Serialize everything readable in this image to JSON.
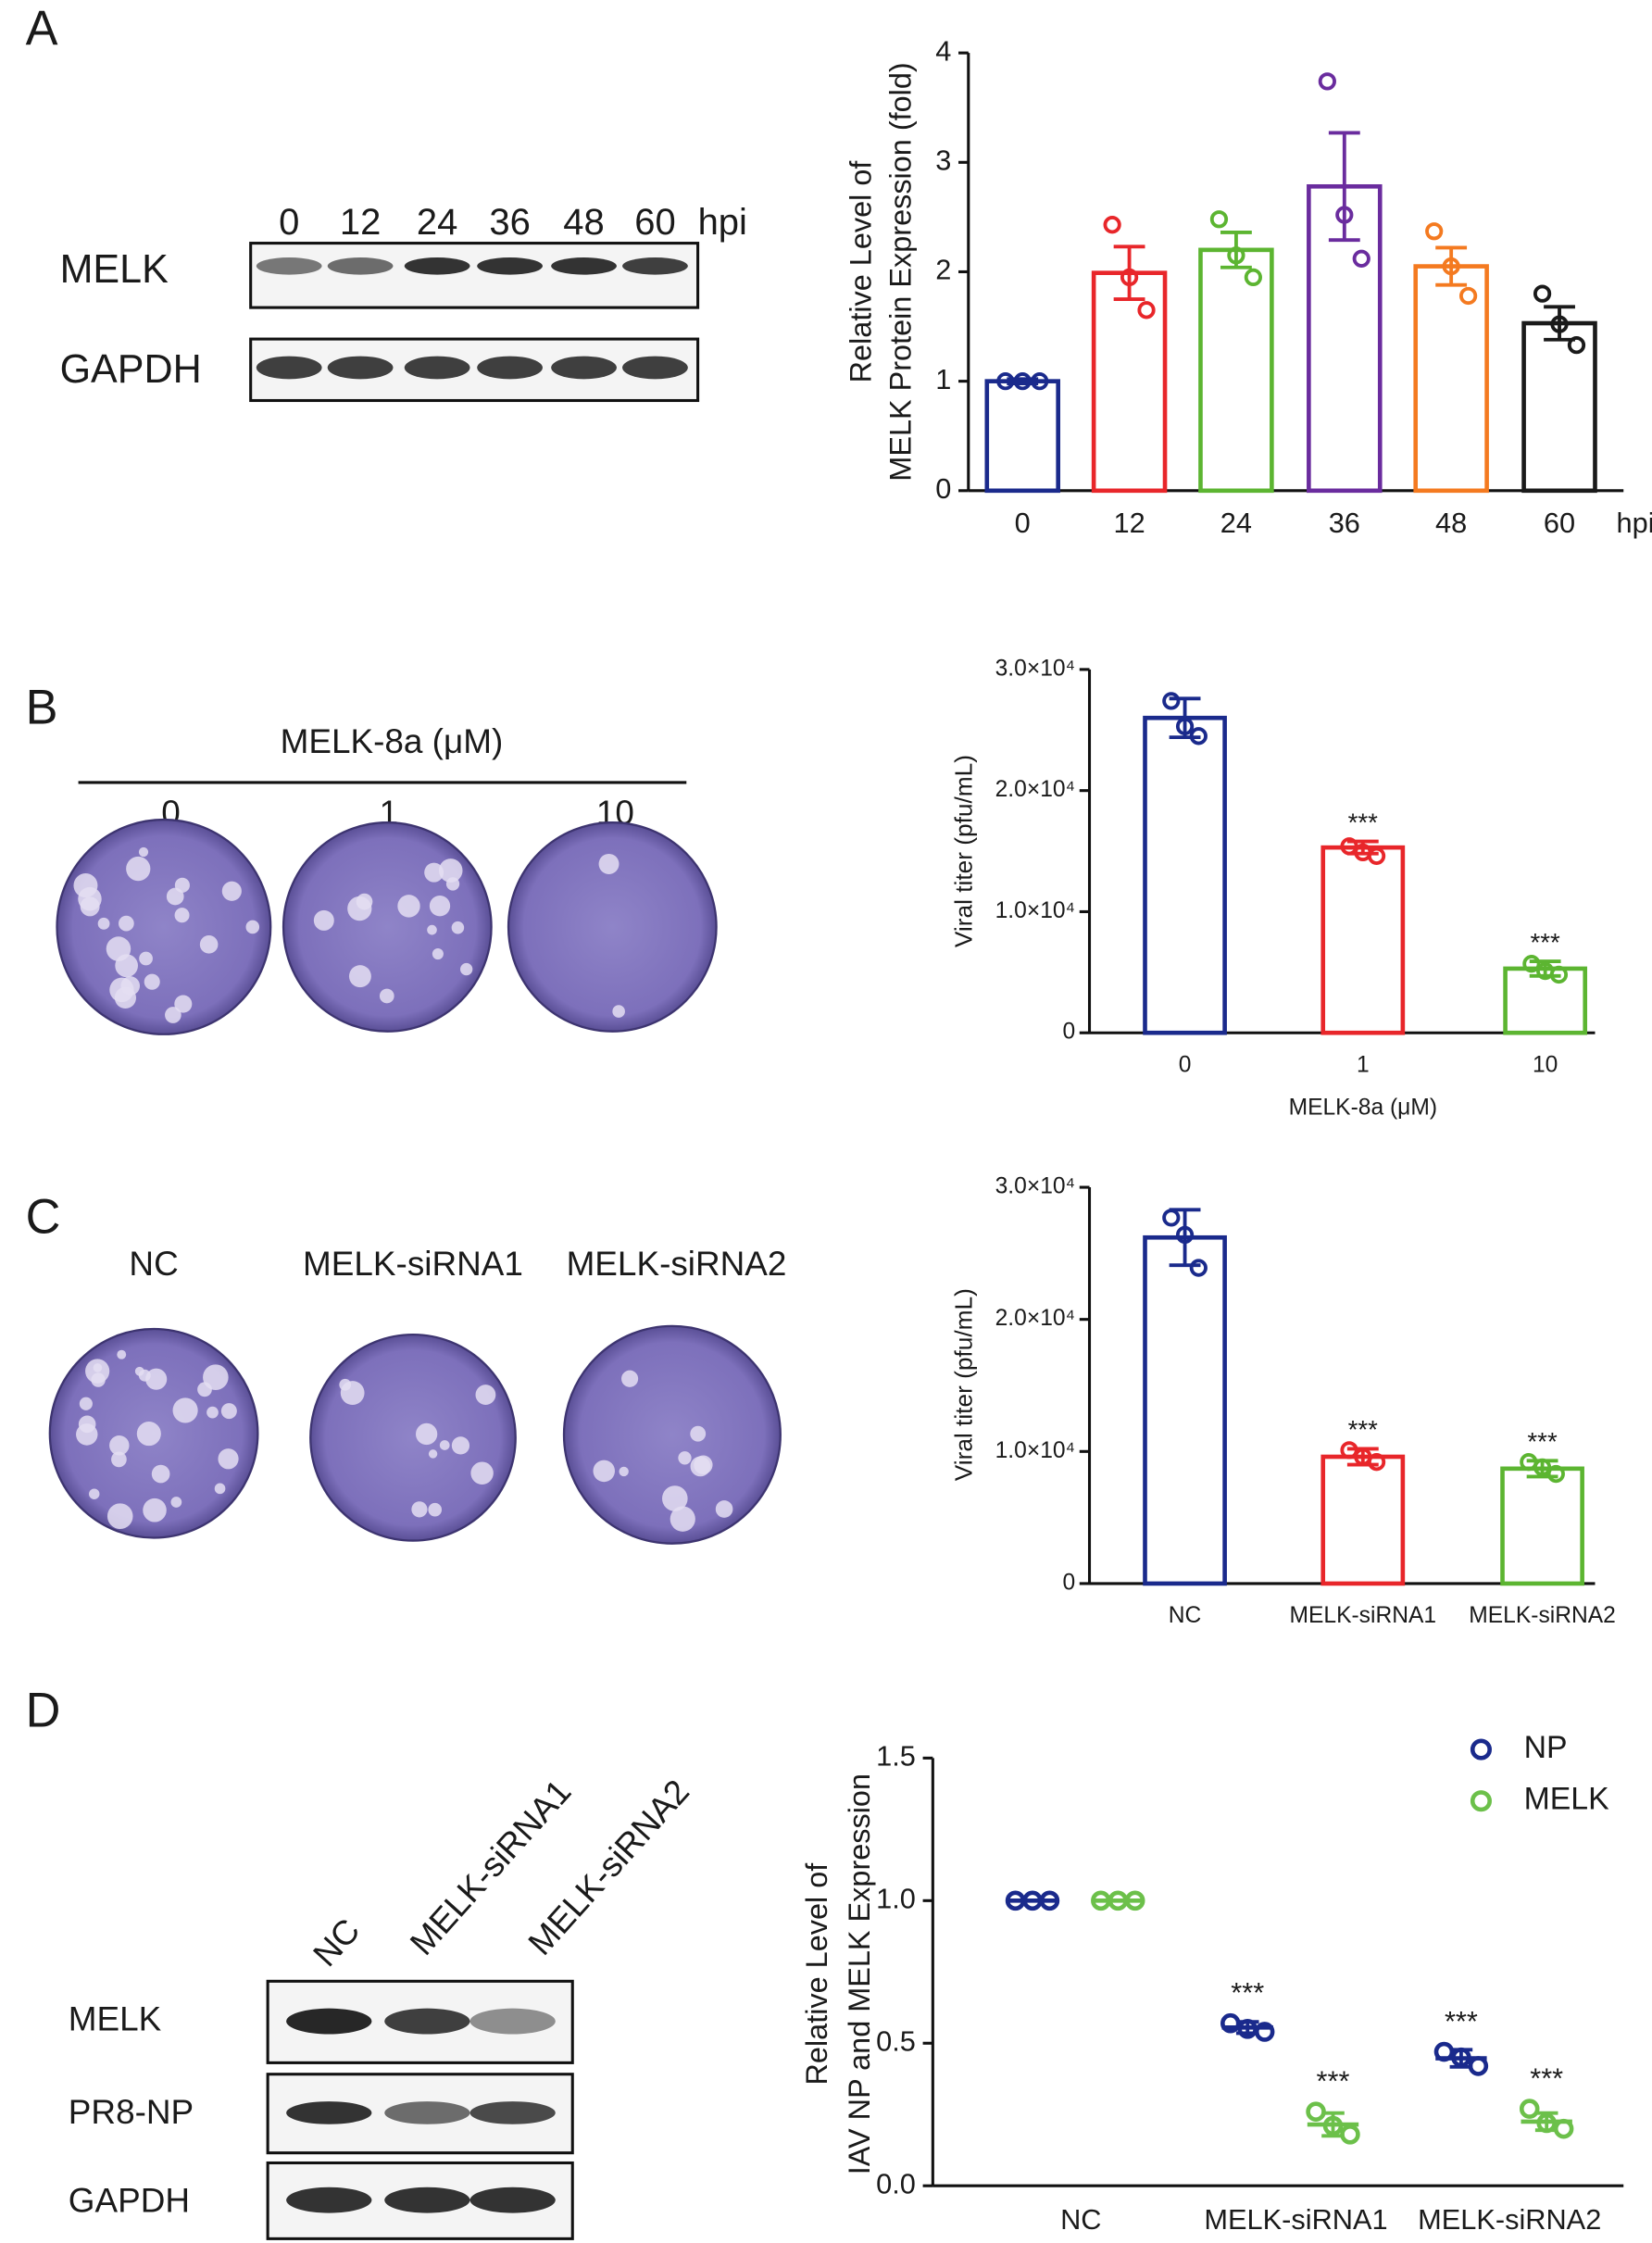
{
  "panels": [
    "A",
    "B",
    "C",
    "D"
  ],
  "blot_a": {
    "lanes": [
      "0",
      "12",
      "24",
      "36",
      "48",
      "60"
    ],
    "unit": "hpi",
    "rows": [
      "MELK",
      "GAPDH"
    ]
  },
  "plates_b": {
    "title": "MELK-8a (μM)",
    "labels": [
      "0",
      "1",
      "10"
    ]
  },
  "plates_c": {
    "labels": [
      "NC",
      "MELK-siRNA1",
      "MELK-siRNA2"
    ]
  },
  "blot_d": {
    "lanes": [
      "NC",
      "MELK-siRNA1",
      "MELK-siRNA2"
    ],
    "rows": [
      "MELK",
      "PR8-NP",
      "GAPDH"
    ]
  },
  "chart_data": [
    {
      "type": "bar",
      "ylabel": [
        "Relative Level of",
        "MELK Protein Expression (fold)"
      ],
      "xlabel": "hpi",
      "categories": [
        "0",
        "12",
        "24",
        "36",
        "48",
        "60"
      ],
      "values": [
        1.0,
        1.99,
        2.2,
        2.78,
        2.05,
        1.53
      ],
      "errors": [
        0.02,
        0.24,
        0.16,
        0.49,
        0.17,
        0.15
      ],
      "points": [
        [
          1.0,
          1.0,
          1.0
        ],
        [
          2.43,
          1.95,
          1.65
        ],
        [
          2.48,
          2.15,
          1.95
        ],
        [
          3.74,
          2.52,
          2.12
        ],
        [
          2.37,
          2.05,
          1.78
        ],
        [
          1.8,
          1.52,
          1.33
        ]
      ],
      "colors": [
        "#1a2a8c",
        "#e8262a",
        "#5cb531",
        "#6a2c9e",
        "#f47a20",
        "#1a1a1a"
      ],
      "ylim": [
        0,
        4
      ],
      "yticks": [
        0,
        1,
        2,
        3,
        4
      ]
    },
    {
      "type": "bar",
      "ylabel": [
        "Viral titer (pfu/mL)"
      ],
      "xlabel": "MELK-8a (μM)",
      "categories": [
        "0",
        "1",
        "10"
      ],
      "values": [
        26000,
        15300,
        5300
      ],
      "errors": [
        1600,
        500,
        600
      ],
      "points": [
        [
          27400,
          25300,
          24500
        ],
        [
          15400,
          14900,
          14600
        ],
        [
          5700,
          5100,
          4800
        ]
      ],
      "significance": [
        null,
        "***",
        "***"
      ],
      "colors": [
        "#1a2a8c",
        "#e8262a",
        "#5cb531"
      ],
      "ylim": [
        0,
        30000
      ],
      "yticks": [
        0,
        {
          "value": 10000,
          "label": "1.0×10⁴"
        },
        {
          "value": 20000,
          "label": "2.0×10⁴"
        },
        {
          "value": 30000,
          "label": "3.0×10⁴"
        }
      ]
    },
    {
      "type": "bar",
      "ylabel": [
        "Viral titer (pfu/mL)"
      ],
      "categories": [
        "NC",
        "MELK-siRNA1",
        "MELK-siRNA2"
      ],
      "values": [
        26200,
        9600,
        8700
      ],
      "errors": [
        2100,
        600,
        600
      ],
      "points": [
        [
          27700,
          26400,
          23900
        ],
        [
          10100,
          9600,
          9200
        ],
        [
          9200,
          8800,
          8300
        ]
      ],
      "significance": [
        null,
        "***",
        "***"
      ],
      "colors": [
        "#1a2a8c",
        "#e8262a",
        "#5cb531"
      ],
      "ylim": [
        0,
        30000
      ],
      "yticks": [
        0,
        {
          "value": 10000,
          "label": "1.0×10⁴"
        },
        {
          "value": 20000,
          "label": "2.0×10⁴"
        },
        {
          "value": 30000,
          "label": "3.0×10⁴"
        }
      ]
    },
    {
      "type": "dot",
      "ylabel": [
        "Relative Level of",
        "IAV NP and MELK Expression"
      ],
      "categories": [
        "NC",
        "MELK-siRNA1",
        "MELK-siRNA2"
      ],
      "series": [
        {
          "name": "NP",
          "color": "#1a2a8c",
          "values": [
            1.0,
            0.555,
            0.447
          ],
          "errors": [
            0.0,
            0.02,
            0.03
          ],
          "points": [
            [
              1.0,
              1.0,
              1.0
            ],
            [
              0.57,
              0.55,
              0.54
            ],
            [
              0.47,
              0.45,
              0.42
            ]
          ],
          "significance": [
            null,
            "***",
            "***"
          ]
        },
        {
          "name": "MELK",
          "color": "#6cc04a",
          "values": [
            1.0,
            0.215,
            0.225
          ],
          "errors": [
            0.0,
            0.04,
            0.03
          ],
          "points": [
            [
              1.0,
              1.0,
              1.0
            ],
            [
              0.26,
              0.21,
              0.18
            ],
            [
              0.27,
              0.22,
              0.2
            ]
          ],
          "significance": [
            null,
            "***",
            "***"
          ]
        }
      ],
      "legend": "top-right",
      "ylim": [
        0,
        1.5
      ],
      "yticks": [
        {
          "value": 0,
          "label": "0.0"
        },
        {
          "value": 0.5,
          "label": "0.5"
        },
        {
          "value": 1,
          "label": "1.0"
        },
        {
          "value": 1.5,
          "label": "1.5"
        }
      ]
    }
  ]
}
